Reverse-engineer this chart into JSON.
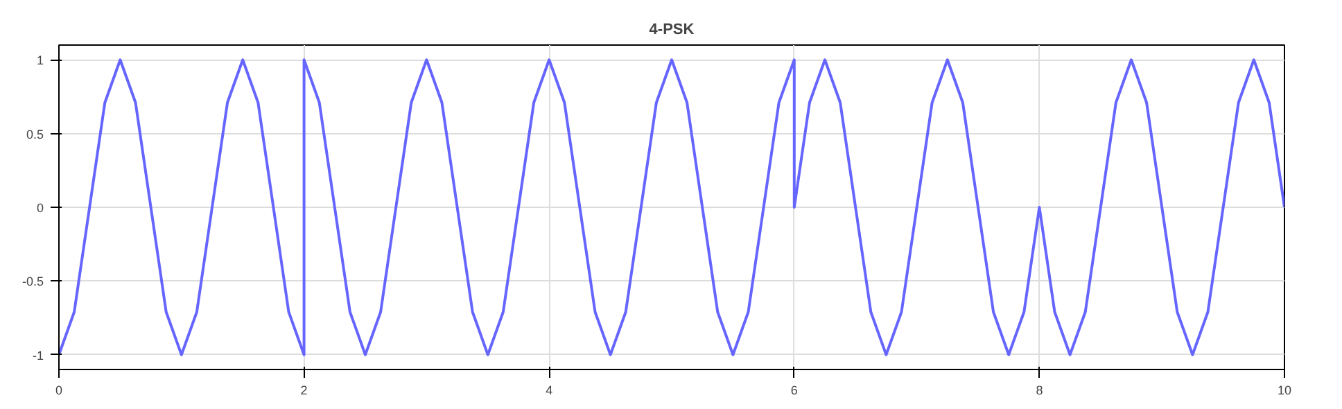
{
  "chart_data": {
    "type": "line",
    "title": "4-PSK",
    "x": [
      0,
      0.125,
      0.25,
      0.375,
      0.5,
      0.625,
      0.75,
      0.875,
      1,
      1.125,
      1.25,
      1.375,
      1.5,
      1.625,
      1.75,
      1.875,
      2,
      2,
      2.125,
      2.25,
      2.375,
      2.5,
      2.625,
      2.75,
      2.875,
      3,
      3.125,
      3.25,
      3.375,
      3.5,
      3.625,
      3.75,
      3.875,
      4,
      4.125,
      4.25,
      4.375,
      4.5,
      4.625,
      4.75,
      4.875,
      5,
      5.125,
      5.25,
      5.375,
      5.5,
      5.625,
      5.75,
      5.875,
      6,
      6,
      6.125,
      6.25,
      6.375,
      6.5,
      6.625,
      6.75,
      6.875,
      7,
      7.125,
      7.25,
      7.375,
      7.5,
      7.625,
      7.75,
      7.875,
      8,
      8.125,
      8.25,
      8.375,
      8.5,
      8.625,
      8.75,
      8.875,
      9,
      9.125,
      9.25,
      9.375,
      9.5,
      9.625,
      9.75,
      9.875,
      10
    ],
    "series": [
      {
        "color": "#6666ff",
        "values": [
          -1,
          -0.71,
          0,
          0.71,
          1,
          0.71,
          0,
          -0.71,
          -1,
          -0.71,
          0,
          0.71,
          1,
          0.71,
          0,
          -0.71,
          -1,
          1,
          0.71,
          0,
          -0.71,
          -1,
          -0.71,
          0,
          0.71,
          1,
          0.71,
          0,
          -0.71,
          -1,
          -0.71,
          0,
          0.71,
          1,
          0.71,
          0,
          -0.71,
          -1,
          -0.71,
          0,
          0.71,
          1,
          0.71,
          0,
          -0.71,
          -1,
          -0.71,
          0,
          0.71,
          1,
          0,
          0.71,
          1,
          0.71,
          0,
          -0.71,
          -1,
          -0.71,
          0,
          0.71,
          1,
          0.71,
          0,
          -0.71,
          -1,
          -0.71,
          0,
          -0.71,
          -1,
          -0.71,
          0,
          0.71,
          1,
          0.71,
          0,
          -0.71,
          -1,
          -0.71,
          0,
          0.71,
          1,
          0.71,
          0
        ]
      }
    ],
    "xlim": [
      0,
      10
    ],
    "xticks": [
      0,
      2,
      4,
      6,
      8,
      10
    ],
    "ylim": [
      -1.1,
      1.1
    ],
    "yticks": [
      -1,
      -0.5,
      0,
      0.5,
      1
    ],
    "grid": true,
    "line_style": "solid",
    "marker": "none"
  }
}
